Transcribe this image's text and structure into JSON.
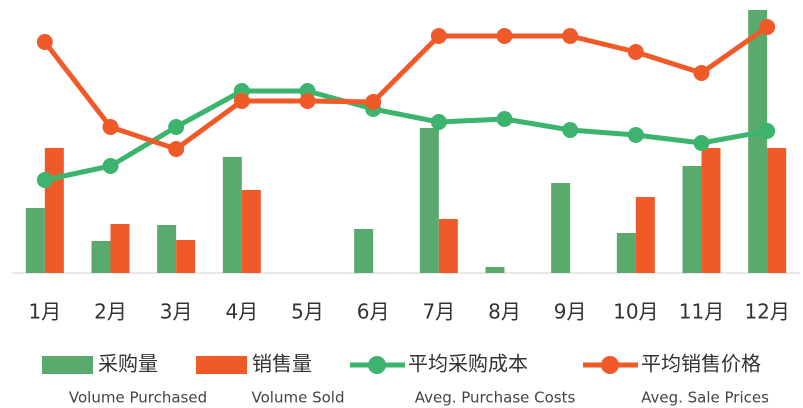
{
  "chart_data": {
    "type": "bar",
    "categories": [
      "1月",
      "2月",
      "3月",
      "4月",
      "5月",
      "6月",
      "7月",
      "8月",
      "9月",
      "10月",
      "11月",
      "12月"
    ],
    "ylim": [
      0,
      263
    ],
    "series": [
      {
        "name": "采购量",
        "label_en": "Volume Purchased",
        "type": "bar",
        "color": "#5aaa6e",
        "values": [
          65,
          32,
          48,
          116,
          null,
          44,
          145,
          6,
          90,
          40,
          107,
          263
        ]
      },
      {
        "name": "销售量",
        "label_en": "Volume Sold",
        "type": "bar",
        "color": "#f05a28",
        "values": [
          125,
          49,
          33,
          83,
          null,
          null,
          54,
          null,
          null,
          76,
          125,
          125
        ]
      },
      {
        "name": "平均采购成本",
        "label_en": "Aveg. Purchase Costs",
        "type": "line",
        "color": "#3cb46e",
        "values": [
          93,
          107,
          146,
          182,
          182,
          164,
          151,
          154,
          143,
          138,
          130,
          142
        ]
      },
      {
        "name": "平均销售价格",
        "label_en": "Aveg. Sale Prices",
        "type": "line",
        "color": "#f05a28",
        "values": [
          231,
          146,
          124,
          172,
          172,
          171,
          237,
          237,
          237,
          221,
          200,
          246
        ]
      }
    ]
  }
}
